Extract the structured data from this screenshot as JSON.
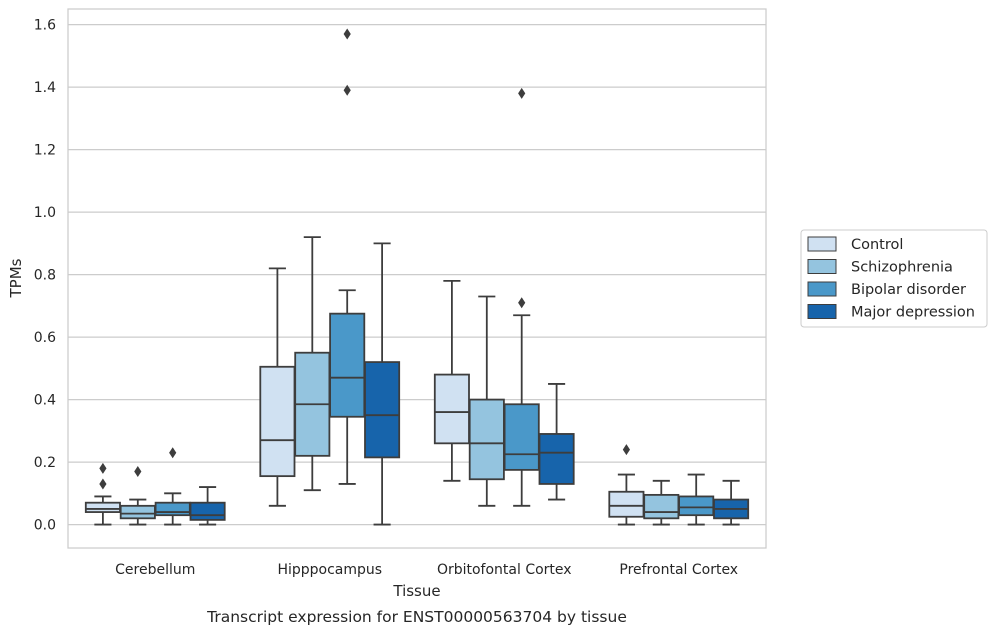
{
  "chart_data": {
    "type": "box",
    "xlabel": "Tissue",
    "ylabel": "TPMs",
    "caption": "Transcript expression for ENST00000563704 by tissue",
    "ylim": [
      -0.075,
      1.65
    ],
    "yticks": [
      0.0,
      0.2,
      0.4,
      0.6,
      0.8,
      1.0,
      1.2,
      1.4,
      1.6
    ],
    "ytick_labels": [
      "0.0",
      "0.2",
      "0.4",
      "0.6",
      "0.8",
      "1.0",
      "1.2",
      "1.4",
      "1.6"
    ],
    "grid": "horizontal",
    "legend_position": "right",
    "categories": [
      "Cerebellum",
      "Hipppocampus",
      "Orbitofontal Cortex",
      "Prefrontal Cortex"
    ],
    "series": [
      {
        "name": "Control",
        "color": "#d0e1f2",
        "boxes": [
          {
            "whislo": 0.0,
            "q1": 0.04,
            "med": 0.05,
            "q3": 0.07,
            "whishi": 0.09,
            "fliers": [
              0.18,
              0.13
            ]
          },
          {
            "whislo": 0.06,
            "q1": 0.155,
            "med": 0.27,
            "q3": 0.505,
            "whishi": 0.82,
            "fliers": []
          },
          {
            "whislo": 0.14,
            "q1": 0.26,
            "med": 0.36,
            "q3": 0.48,
            "whishi": 0.78,
            "fliers": []
          },
          {
            "whislo": 0.0,
            "q1": 0.025,
            "med": 0.06,
            "q3": 0.105,
            "whishi": 0.16,
            "fliers": [
              0.24
            ]
          }
        ]
      },
      {
        "name": "Schizophrenia",
        "color": "#94c4df",
        "boxes": [
          {
            "whislo": 0.0,
            "q1": 0.02,
            "med": 0.035,
            "q3": 0.06,
            "whishi": 0.08,
            "fliers": [
              0.17
            ]
          },
          {
            "whislo": 0.11,
            "q1": 0.22,
            "med": 0.385,
            "q3": 0.55,
            "whishi": 0.92,
            "fliers": []
          },
          {
            "whislo": 0.06,
            "q1": 0.145,
            "med": 0.26,
            "q3": 0.4,
            "whishi": 0.73,
            "fliers": []
          },
          {
            "whislo": 0.0,
            "q1": 0.02,
            "med": 0.04,
            "q3": 0.095,
            "whishi": 0.14,
            "fliers": []
          }
        ]
      },
      {
        "name": "Bipolar disorder",
        "color": "#4a98c9",
        "boxes": [
          {
            "whislo": 0.0,
            "q1": 0.03,
            "med": 0.04,
            "q3": 0.07,
            "whishi": 0.1,
            "fliers": [
              0.23
            ]
          },
          {
            "whislo": 0.13,
            "q1": 0.345,
            "med": 0.47,
            "q3": 0.675,
            "whishi": 0.75,
            "fliers": [
              1.39,
              1.57
            ]
          },
          {
            "whislo": 0.06,
            "q1": 0.175,
            "med": 0.225,
            "q3": 0.385,
            "whishi": 0.67,
            "fliers": [
              0.71,
              1.38
            ]
          },
          {
            "whislo": 0.0,
            "q1": 0.03,
            "med": 0.055,
            "q3": 0.09,
            "whishi": 0.16,
            "fliers": []
          }
        ]
      },
      {
        "name": "Major depression",
        "color": "#1764ab",
        "boxes": [
          {
            "whislo": 0.0,
            "q1": 0.015,
            "med": 0.03,
            "q3": 0.07,
            "whishi": 0.12,
            "fliers": []
          },
          {
            "whislo": 0.0,
            "q1": 0.215,
            "med": 0.35,
            "q3": 0.52,
            "whishi": 0.9,
            "fliers": []
          },
          {
            "whislo": 0.08,
            "q1": 0.13,
            "med": 0.23,
            "q3": 0.29,
            "whishi": 0.45,
            "fliers": []
          },
          {
            "whislo": 0.0,
            "q1": 0.02,
            "med": 0.05,
            "q3": 0.08,
            "whishi": 0.14,
            "fliers": []
          }
        ]
      }
    ]
  }
}
